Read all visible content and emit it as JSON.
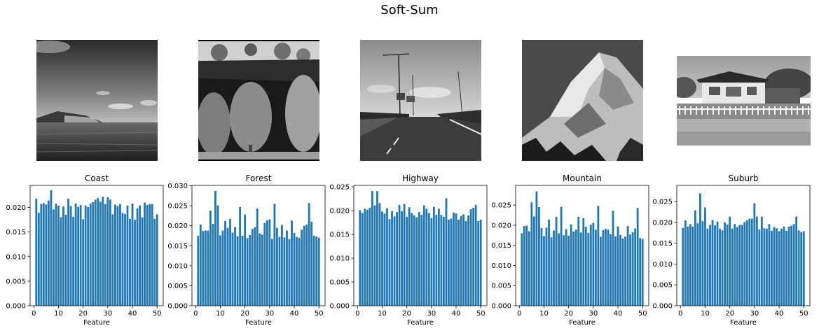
{
  "figure": {
    "title": "Soft-Sum"
  },
  "images": [
    {
      "scene": "coast"
    },
    {
      "scene": "forest"
    },
    {
      "scene": "highway"
    },
    {
      "scene": "mountain"
    },
    {
      "scene": "suburb"
    }
  ],
  "chart_data": [
    {
      "type": "bar",
      "title": "Coast",
      "xlabel": "Feature",
      "ylabel": "",
      "color": "#1f77b4",
      "grid": false,
      "x": [
        1,
        2,
        3,
        4,
        5,
        6,
        7,
        8,
        9,
        10,
        11,
        12,
        13,
        14,
        15,
        16,
        17,
        18,
        19,
        20,
        21,
        22,
        23,
        24,
        25,
        26,
        27,
        28,
        29,
        30,
        31,
        32,
        33,
        34,
        35,
        36,
        37,
        38,
        39,
        40,
        41,
        42,
        43,
        44,
        45,
        46,
        47,
        48,
        49,
        50
      ],
      "values": [
        0.0218,
        0.0189,
        0.0207,
        0.0209,
        0.0206,
        0.0214,
        0.0235,
        0.0196,
        0.0208,
        0.0204,
        0.018,
        0.0202,
        0.0185,
        0.0218,
        0.0203,
        0.0181,
        0.0208,
        0.0201,
        0.0205,
        0.0176,
        0.0204,
        0.0201,
        0.0208,
        0.0211,
        0.0216,
        0.0219,
        0.0212,
        0.0222,
        0.0207,
        0.0221,
        0.0216,
        0.0186,
        0.0206,
        0.0203,
        0.0207,
        0.0189,
        0.0187,
        0.0204,
        0.0177,
        0.0208,
        0.0175,
        0.0198,
        0.0204,
        0.018,
        0.021,
        0.0205,
        0.0207,
        0.0207,
        0.0177,
        0.0186
      ],
      "xlim": [
        -1.5,
        52.5
      ],
      "ylim": [
        0,
        0.0245
      ],
      "xticks": [
        0,
        10,
        20,
        30,
        40,
        50
      ],
      "yticks": [
        0,
        0.005,
        0.01,
        0.015,
        0.02
      ],
      "ytick_labels": [
        "0.000",
        "0.005",
        "0.010",
        "0.015",
        "0.020"
      ]
    },
    {
      "type": "bar",
      "title": "Forest",
      "xlabel": "Feature",
      "ylabel": "",
      "color": "#1f77b4",
      "grid": false,
      "x": [
        1,
        2,
        3,
        4,
        5,
        6,
        7,
        8,
        9,
        10,
        11,
        12,
        13,
        14,
        15,
        16,
        17,
        18,
        19,
        20,
        21,
        22,
        23,
        24,
        25,
        26,
        27,
        28,
        29,
        30,
        31,
        32,
        33,
        34,
        35,
        36,
        37,
        38,
        39,
        40,
        41,
        42,
        43,
        44,
        45,
        46,
        47,
        48,
        49,
        50
      ],
      "values": [
        0.0175,
        0.0203,
        0.0187,
        0.0188,
        0.0188,
        0.0238,
        0.0205,
        0.0287,
        0.0251,
        0.0176,
        0.0188,
        0.0212,
        0.0195,
        0.0217,
        0.0183,
        0.0197,
        0.0174,
        0.0247,
        0.0175,
        0.0228,
        0.0169,
        0.0177,
        0.0192,
        0.0196,
        0.0243,
        0.0181,
        0.0178,
        0.0207,
        0.0214,
        0.0216,
        0.0167,
        0.0255,
        0.0195,
        0.0172,
        0.0202,
        0.0171,
        0.0188,
        0.0167,
        0.0213,
        0.0182,
        0.0172,
        0.017,
        0.019,
        0.02,
        0.0203,
        0.0257,
        0.021,
        0.0175,
        0.0173,
        0.017
      ],
      "xlim": [
        -1.5,
        52.5
      ],
      "ylim": [
        0,
        0.0301
      ],
      "xticks": [
        0,
        10,
        20,
        30,
        40,
        50
      ],
      "yticks": [
        0,
        0.005,
        0.01,
        0.015,
        0.02,
        0.025,
        0.03
      ],
      "ytick_labels": [
        "0.000",
        "0.005",
        "0.010",
        "0.015",
        "0.020",
        "0.025",
        "0.030"
      ]
    },
    {
      "type": "bar",
      "title": "Highway",
      "xlabel": "Feature",
      "ylabel": "",
      "color": "#1f77b4",
      "grid": false,
      "x": [
        1,
        2,
        3,
        4,
        5,
        6,
        7,
        8,
        9,
        10,
        11,
        12,
        13,
        14,
        15,
        16,
        17,
        18,
        19,
        20,
        21,
        22,
        23,
        24,
        25,
        26,
        27,
        28,
        29,
        30,
        31,
        32,
        33,
        34,
        35,
        36,
        37,
        38,
        39,
        40,
        41,
        42,
        43,
        44,
        45,
        46,
        47,
        48,
        49,
        50
      ],
      "values": [
        0.0201,
        0.0195,
        0.0204,
        0.0202,
        0.0206,
        0.0241,
        0.0211,
        0.0241,
        0.0216,
        0.0198,
        0.0194,
        0.0205,
        0.0182,
        0.0199,
        0.0188,
        0.0197,
        0.0212,
        0.0199,
        0.0214,
        0.0187,
        0.0207,
        0.0195,
        0.019,
        0.0186,
        0.0197,
        0.0191,
        0.0211,
        0.0204,
        0.0195,
        0.0184,
        0.0208,
        0.0191,
        0.0204,
        0.0191,
        0.0187,
        0.0226,
        0.0181,
        0.0183,
        0.0196,
        0.0194,
        0.0181,
        0.0189,
        0.0192,
        0.0178,
        0.019,
        0.0203,
        0.0206,
        0.0212,
        0.0178,
        0.0181
      ],
      "xlim": [
        -1.5,
        52.5
      ],
      "ylim": [
        0,
        0.0253
      ],
      "xticks": [
        0,
        10,
        20,
        30,
        40,
        50
      ],
      "yticks": [
        0,
        0.005,
        0.01,
        0.015,
        0.02,
        0.025
      ],
      "ytick_labels": [
        "0.000",
        "0.005",
        "0.010",
        "0.015",
        "0.020",
        "0.025"
      ]
    },
    {
      "type": "bar",
      "title": "Mountain",
      "xlabel": "Feature",
      "ylabel": "",
      "color": "#1f77b4",
      "grid": false,
      "x": [
        1,
        2,
        3,
        4,
        5,
        6,
        7,
        8,
        9,
        10,
        11,
        12,
        13,
        14,
        15,
        16,
        17,
        18,
        19,
        20,
        21,
        22,
        23,
        24,
        25,
        26,
        27,
        28,
        29,
        30,
        31,
        32,
        33,
        34,
        35,
        36,
        37,
        38,
        39,
        40,
        41,
        42,
        43,
        44,
        45,
        46,
        47,
        48,
        49,
        50
      ],
      "values": [
        0.018,
        0.0198,
        0.0199,
        0.0185,
        0.0257,
        0.0222,
        0.0284,
        0.0245,
        0.0193,
        0.0173,
        0.0194,
        0.0214,
        0.017,
        0.0187,
        0.0221,
        0.018,
        0.0246,
        0.0175,
        0.019,
        0.0174,
        0.0202,
        0.0184,
        0.0189,
        0.0221,
        0.0182,
        0.0218,
        0.0196,
        0.0181,
        0.0201,
        0.0206,
        0.0189,
        0.0248,
        0.0171,
        0.0188,
        0.0191,
        0.0189,
        0.0178,
        0.0236,
        0.0172,
        0.0197,
        0.0176,
        0.0167,
        0.0172,
        0.0198,
        0.0177,
        0.0183,
        0.0192,
        0.0243,
        0.0168,
        0.0166
      ],
      "xlim": [
        -1.5,
        52.5
      ],
      "ylim": [
        0,
        0.0299
      ],
      "xticks": [
        0,
        10,
        20,
        30,
        40,
        50
      ],
      "yticks": [
        0,
        0.005,
        0.01,
        0.015,
        0.02,
        0.025
      ],
      "ytick_labels": [
        "0.000",
        "0.005",
        "0.010",
        "0.015",
        "0.020",
        "0.025"
      ]
    },
    {
      "type": "bar",
      "title": "Suburb",
      "xlabel": "Feature",
      "ylabel": "",
      "color": "#1f77b4",
      "grid": false,
      "x": [
        1,
        2,
        3,
        4,
        5,
        6,
        7,
        8,
        9,
        10,
        11,
        12,
        13,
        14,
        15,
        16,
        17,
        18,
        19,
        20,
        21,
        22,
        23,
        24,
        25,
        26,
        27,
        28,
        29,
        30,
        31,
        32,
        33,
        34,
        35,
        36,
        37,
        38,
        39,
        40,
        41,
        42,
        43,
        44,
        45,
        46,
        47,
        48,
        49,
        50
      ],
      "values": [
        0.0187,
        0.0205,
        0.019,
        0.0196,
        0.019,
        0.0229,
        0.0198,
        0.027,
        0.0203,
        0.0236,
        0.0185,
        0.0194,
        0.0206,
        0.0193,
        0.0202,
        0.0185,
        0.0181,
        0.02,
        0.0195,
        0.0214,
        0.0185,
        0.0196,
        0.0189,
        0.0194,
        0.0194,
        0.0201,
        0.0205,
        0.0209,
        0.0209,
        0.0246,
        0.0214,
        0.0183,
        0.0214,
        0.0186,
        0.0185,
        0.0196,
        0.018,
        0.0189,
        0.0186,
        0.0179,
        0.0185,
        0.019,
        0.018,
        0.019,
        0.0192,
        0.0196,
        0.0214,
        0.0181,
        0.0177,
        0.0179
      ],
      "xlim": [
        -1.5,
        52.5
      ],
      "ylim": [
        0,
        0.0289
      ],
      "xticks": [
        0,
        10,
        20,
        30,
        40,
        50
      ],
      "yticks": [
        0,
        0.005,
        0.01,
        0.015,
        0.02,
        0.025
      ],
      "ytick_labels": [
        "0.000",
        "0.005",
        "0.010",
        "0.015",
        "0.020",
        "0.025"
      ]
    }
  ]
}
